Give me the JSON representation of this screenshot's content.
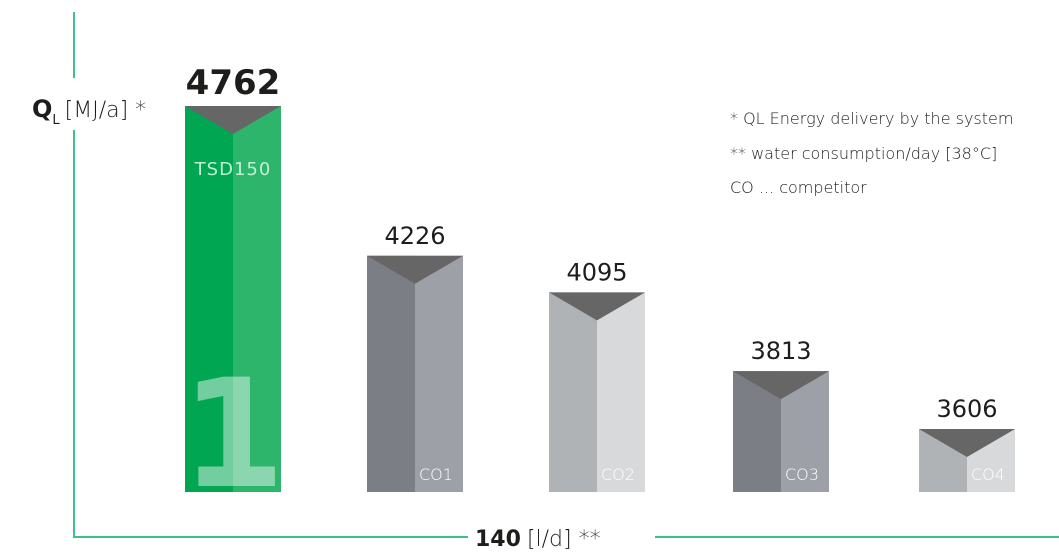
{
  "chart_data": {
    "type": "bar",
    "categories": [
      "TSD150",
      "CO1",
      "CO2",
      "CO3",
      "CO4"
    ],
    "values": [
      4762,
      4226,
      4095,
      3813,
      3606
    ],
    "ylabel_main": "Q",
    "ylabel_sub": "L",
    "ylabel_unit": "[MJ/a] *",
    "xlabel_value": "140",
    "xlabel_unit": "[l/d] **",
    "rank_label": "1",
    "notes": [
      "* QL Energy delivery by the system",
      "** water consumption/day [38°C]",
      "CO ... competitor"
    ],
    "colors": {
      "winner_left": "#00a651",
      "winner_right": "#2db56c",
      "bar_dark_left": "#7b7e85",
      "bar_dark_right": "#9da0a6",
      "bar_light_left": "#b0b3b6",
      "bar_light_right": "#d7d9db",
      "cap": "#666666",
      "axis": "#3fbf8a"
    }
  }
}
